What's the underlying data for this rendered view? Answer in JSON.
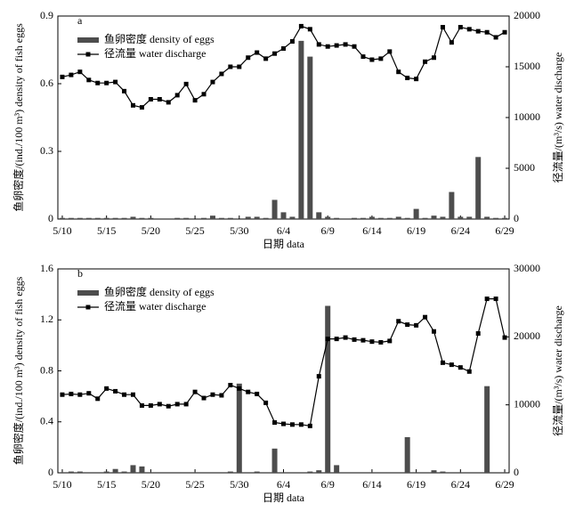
{
  "chart_data": [
    {
      "type": "bar-line",
      "title": "a",
      "y_label": "鱼卵密度/(ind./100 m³) density of fish eggs",
      "y2_label": "径流量/(m³/s) water discharge",
      "x_label": "日期 data",
      "categories": [
        "5/10",
        null,
        null,
        null,
        null,
        "5/15",
        null,
        null,
        null,
        null,
        "5/20",
        null,
        null,
        null,
        null,
        "5/25",
        null,
        null,
        null,
        null,
        "5/30",
        null,
        null,
        null,
        null,
        "6/4",
        null,
        null,
        null,
        null,
        "6/9",
        null,
        null,
        null,
        null,
        "6/14",
        null,
        null,
        null,
        null,
        "6/19",
        null,
        null,
        null,
        null,
        "6/24",
        null,
        null,
        null,
        null,
        "6/29"
      ],
      "ylim": [
        0,
        0.9
      ],
      "yticks": [
        0,
        0.3,
        0.6,
        0.9
      ],
      "y2lim": [
        0,
        20000
      ],
      "y2ticks": [
        0,
        5000,
        10000,
        15000,
        20000
      ],
      "legend": "upper left",
      "series": [
        {
          "name": "鱼卵密度 density of eggs",
          "color": "#4d4d4d",
          "kind": "bar",
          "values": [
            0.005,
            0.005,
            0.005,
            0.005,
            0.005,
            0.005,
            0.005,
            0.005,
            0.01,
            0.005,
            0.005,
            0,
            0,
            0.005,
            0.005,
            0,
            0.005,
            0.015,
            0.005,
            0.005,
            0,
            0.01,
            0.01,
            0.005,
            0.085,
            0.03,
            0.01,
            0.79,
            0.72,
            0.03,
            0.01,
            0.005,
            0,
            0.005,
            0.005,
            0.01,
            0.005,
            0.005,
            0.01,
            0.005,
            0.045,
            0.005,
            0.015,
            0.01,
            0.12,
            0.01,
            0.01,
            0.275,
            0.01,
            0.005,
            0.005
          ]
        },
        {
          "name": "径流量 water discharge",
          "color": "#000000",
          "kind": "line",
          "axis": "y2",
          "values": [
            14000,
            14200,
            14500,
            13700,
            13400,
            13400,
            13500,
            12600,
            11200,
            11000,
            11800,
            11800,
            11500,
            12200,
            13300,
            11700,
            12300,
            13500,
            14300,
            15000,
            15000,
            15900,
            16400,
            15800,
            16300,
            16800,
            17500,
            19000,
            18700,
            17200,
            17000,
            17100,
            17200,
            17000,
            16000,
            15700,
            15800,
            16500,
            14500,
            13900,
            13800,
            15500,
            15900,
            18900,
            17400,
            18900,
            18700,
            18500,
            18400,
            17900,
            18400
          ]
        }
      ]
    },
    {
      "type": "bar-line",
      "title": "b",
      "y_label": "鱼卵密度/(ind./100 m³) density of fish eggs",
      "y2_label": "径流量/(m³/s) water discharge",
      "x_label": "日期 data",
      "categories": [
        "5/10",
        null,
        null,
        null,
        null,
        "5/15",
        null,
        null,
        null,
        null,
        "5/20",
        null,
        null,
        null,
        null,
        "5/25",
        null,
        null,
        null,
        null,
        "5/30",
        null,
        null,
        null,
        null,
        "6/4",
        null,
        null,
        null,
        null,
        "6/9",
        null,
        null,
        null,
        null,
        "6/14",
        null,
        null,
        null,
        null,
        "6/19",
        null,
        null,
        null,
        null,
        "6/24",
        null,
        null,
        null,
        null,
        "6/29"
      ],
      "ylim": [
        0,
        1.6
      ],
      "yticks": [
        0,
        0.4,
        0.8,
        1.2,
        1.6
      ],
      "y2lim": [
        0,
        30000
      ],
      "y2ticks": [
        0,
        10000,
        20000,
        30000
      ],
      "legend": "upper left",
      "series": [
        {
          "name": "鱼卵密度 density of eggs",
          "color": "#4d4d4d",
          "kind": "bar",
          "values": [
            0.005,
            0.01,
            0.01,
            0.005,
            0.005,
            0.01,
            0.03,
            0.01,
            0.06,
            0.05,
            0.005,
            0.005,
            0.005,
            0.005,
            0.005,
            0.005,
            0.005,
            0.005,
            0.005,
            0.01,
            0.7,
            0.005,
            0.01,
            0.005,
            0.19,
            0.005,
            0.005,
            0.005,
            0.01,
            0.02,
            1.31,
            0.06,
            0.005,
            0.005,
            0.005,
            0.005,
            0.005,
            0.005,
            0.005,
            0.28,
            0.005,
            0.005,
            0.02,
            0.01,
            0.005,
            0.005,
            0.005,
            0.005,
            0.68,
            0.005,
            0.005
          ]
        },
        {
          "name": "径流量 water discharge",
          "color": "#000000",
          "kind": "line",
          "axis": "y2",
          "values": [
            11500,
            11600,
            11500,
            11700,
            10900,
            12400,
            12000,
            11500,
            11500,
            9900,
            9900,
            10100,
            9800,
            10100,
            10100,
            11900,
            11000,
            11500,
            11400,
            12900,
            12400,
            11900,
            11600,
            10300,
            7400,
            7200,
            7100,
            7100,
            6900,
            14200,
            19700,
            19700,
            19900,
            19600,
            19500,
            19300,
            19200,
            19400,
            22300,
            21800,
            21700,
            22900,
            20800,
            16200,
            15900,
            15500,
            14900,
            20500,
            25600,
            25600,
            19900
          ]
        }
      ]
    }
  ]
}
